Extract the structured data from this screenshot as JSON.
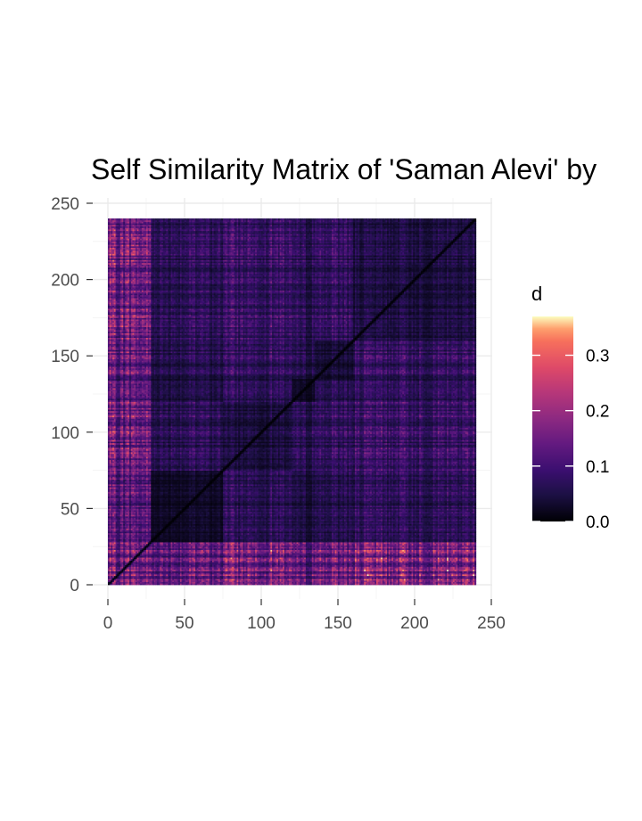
{
  "chart_data": {
    "type": "heatmap",
    "title": "Self Similarity Matrix of 'Saman Alevi' by",
    "xlabel": "",
    "ylabel": "",
    "xlim": [
      0,
      250
    ],
    "ylim": [
      0,
      250
    ],
    "x_ticks": [
      0,
      50,
      100,
      150,
      200,
      250
    ],
    "y_ticks": [
      0,
      50,
      100,
      150,
      200,
      250
    ],
    "x_tick_labels": [
      "0",
      "50",
      "100",
      "150",
      "200",
      "250"
    ],
    "y_tick_labels": [
      "0",
      "50",
      "100",
      "150",
      "200",
      "250"
    ],
    "n_cells": 240,
    "value_range": [
      0,
      0.37
    ],
    "grid": true,
    "legend": {
      "title": "d",
      "placement": "right",
      "ticks": [
        0.0,
        0.1,
        0.2,
        0.3
      ],
      "tick_labels": [
        "0.0",
        "0.1",
        "0.2",
        "0.3"
      ],
      "range": [
        0,
        0.37
      ],
      "colormap": "magma"
    },
    "block_segments": [
      [
        0,
        28,
        0.11
      ],
      [
        28,
        75,
        0.05
      ],
      [
        75,
        120,
        0.09
      ],
      [
        120,
        135,
        0.04
      ],
      [
        135,
        160,
        0.07
      ],
      [
        160,
        240,
        0.09
      ]
    ],
    "colors": {
      "min": "#000004",
      "q1": "#3b0f70",
      "mid": "#8c2981",
      "q3": "#de4968",
      "high": "#fe9f6d",
      "max": "#fcfdbf"
    }
  }
}
